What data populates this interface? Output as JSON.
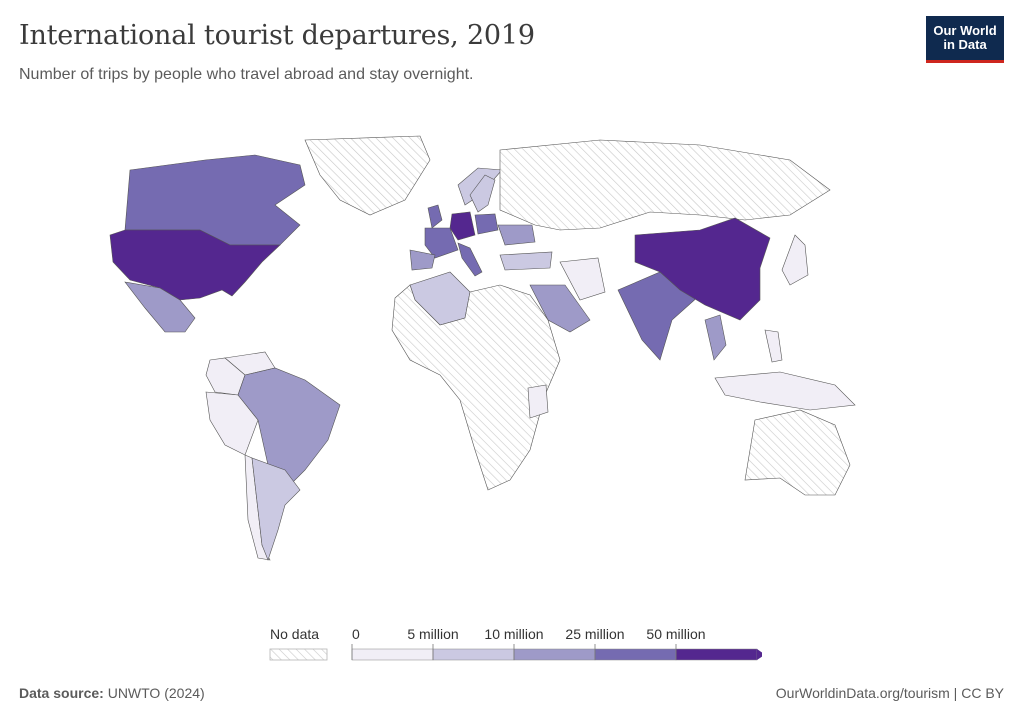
{
  "header": {
    "title": "International tourist departures, 2019",
    "subtitle": "Number of trips by people who travel abroad and stay overnight."
  },
  "logo": {
    "line1": "Our World",
    "line2": "in Data"
  },
  "legend": {
    "no_data_label": "No data",
    "ticks": [
      "0",
      "5 million",
      "10 million",
      "25 million",
      "50 million"
    ],
    "colors": [
      "#f1eef6",
      "#cbc9e2",
      "#9e9ac8",
      "#756bb1",
      "#54278f"
    ],
    "no_data_fill": "hatched-grey"
  },
  "footer": {
    "source_label": "Data source:",
    "source_value": "UNWTO (2024)",
    "link_text": "OurWorldinData.org/tourism | CC BY"
  },
  "map_data": {
    "type": "choropleth",
    "year": "2019",
    "bins": [
      "0–5 million",
      "5–10 million",
      "10–25 million",
      "25–50 million",
      "50+ million"
    ],
    "countries": [
      {
        "name": "United States",
        "bin": 4
      },
      {
        "name": "China",
        "bin": 4
      },
      {
        "name": "Germany",
        "bin": 4
      },
      {
        "name": "Canada",
        "bin": 3
      },
      {
        "name": "India",
        "bin": 3
      },
      {
        "name": "France",
        "bin": 3
      },
      {
        "name": "United Kingdom",
        "bin": 3
      },
      {
        "name": "Italy",
        "bin": 3
      },
      {
        "name": "Poland",
        "bin": 3
      },
      {
        "name": "Mexico",
        "bin": 2
      },
      {
        "name": "Brazil",
        "bin": 2
      },
      {
        "name": "Saudi Arabia",
        "bin": 2
      },
      {
        "name": "Spain",
        "bin": 2
      },
      {
        "name": "Thailand",
        "bin": 2
      },
      {
        "name": "Ukraine",
        "bin": 2
      },
      {
        "name": "Argentina",
        "bin": 1
      },
      {
        "name": "Algeria",
        "bin": 1
      },
      {
        "name": "Turkey",
        "bin": 1
      },
      {
        "name": "Sweden",
        "bin": 1
      },
      {
        "name": "Norway",
        "bin": 1
      },
      {
        "name": "Colombia",
        "bin": 0
      },
      {
        "name": "Peru",
        "bin": 0
      },
      {
        "name": "Chile",
        "bin": 0
      },
      {
        "name": "Venezuela",
        "bin": 0
      },
      {
        "name": "Kenya",
        "bin": 0
      },
      {
        "name": "Iran",
        "bin": 0
      },
      {
        "name": "Japan",
        "bin": 0
      },
      {
        "name": "Philippines",
        "bin": 0
      },
      {
        "name": "Indonesia",
        "bin": 0
      },
      {
        "name": "Australia",
        "bin": null
      },
      {
        "name": "Russia",
        "bin": null
      },
      {
        "name": "Greenland",
        "bin": null
      }
    ]
  }
}
